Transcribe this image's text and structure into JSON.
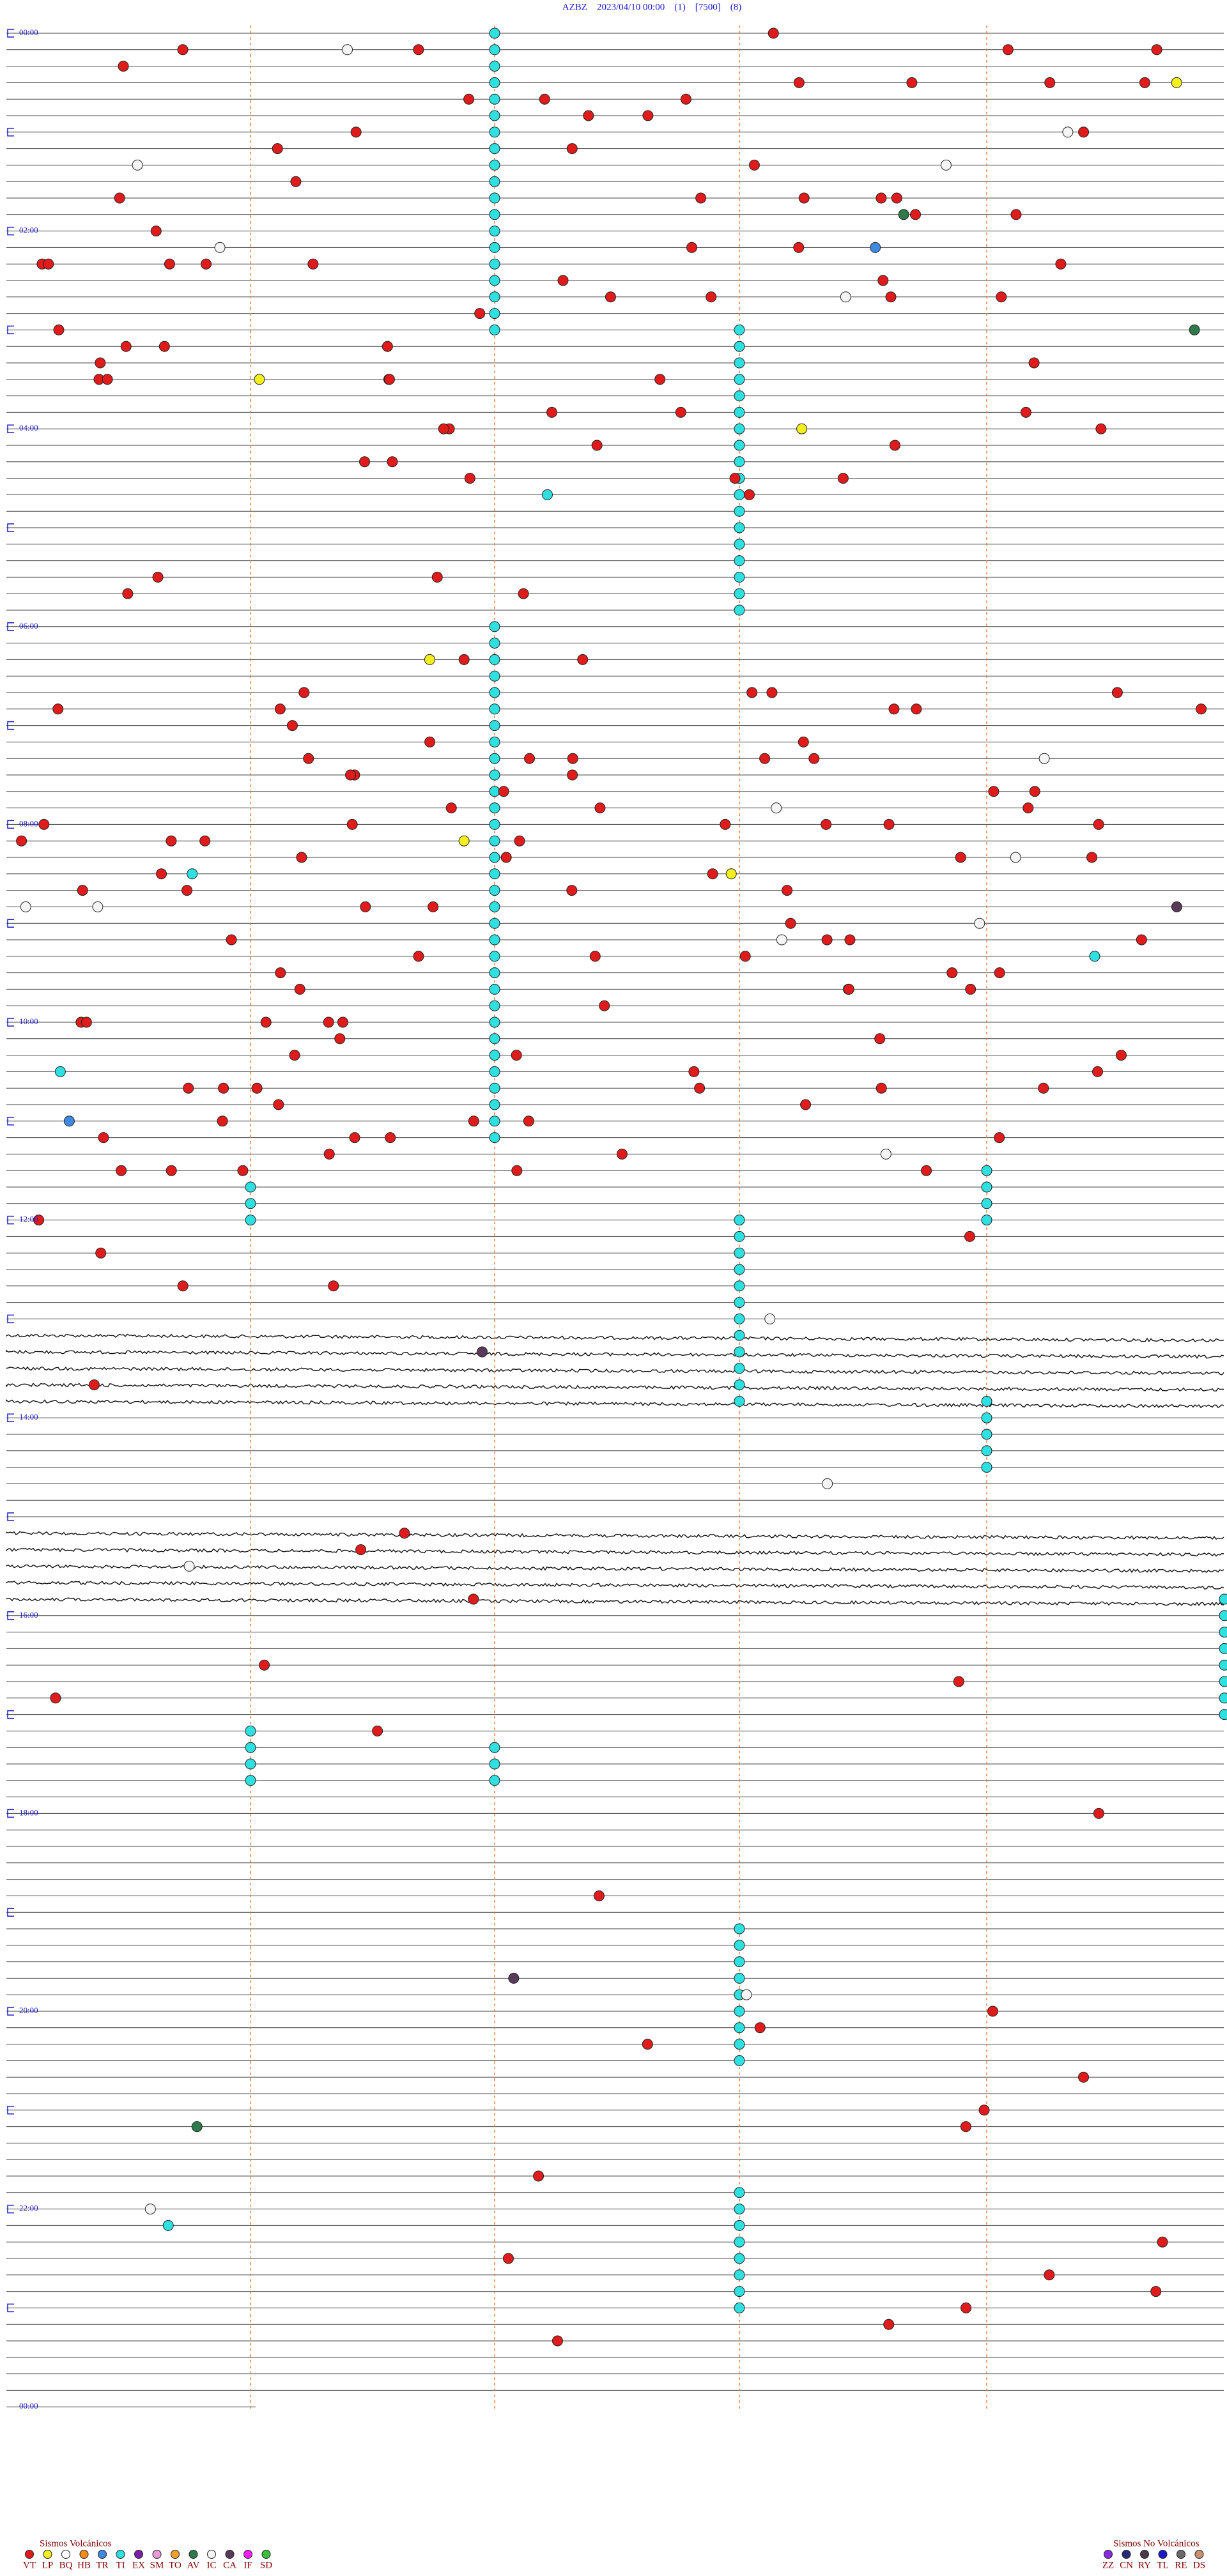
{
  "header": {
    "title": "AZBZ    2023/04/10 00:00    (1)    [7500]    (8)"
  },
  "time_labels": [
    "00:00",
    "02:00",
    "04:00",
    "06:00",
    "08:00",
    "10:00",
    "12:00",
    "14:00",
    "16:00",
    "18:00",
    "20:00",
    "22:00",
    "00:00"
  ],
  "legend": {
    "volcanic": {
      "title": "Sismos Volcánicos",
      "items": [
        {
          "label": "VT",
          "color": "#e01b1b"
        },
        {
          "label": "LP",
          "color": "#f2ef1c"
        },
        {
          "label": "BQ",
          "color": "#ffffff"
        },
        {
          "label": "HB",
          "color": "#f28c1c"
        },
        {
          "label": "TR",
          "color": "#3f8ae0"
        },
        {
          "label": "TI",
          "color": "#2ee0e0"
        },
        {
          "label": "EX",
          "color": "#7a1fa8"
        },
        {
          "label": "SM",
          "color": "#e89ad6"
        },
        {
          "label": "TO",
          "color": "#f0a030"
        },
        {
          "label": "AV",
          "color": "#2e7a4a"
        },
        {
          "label": "IC",
          "color": "#f4f4f4"
        },
        {
          "label": "CA",
          "color": "#5a3a5a"
        },
        {
          "label": "IF",
          "color": "#ff1cff"
        },
        {
          "label": "SD",
          "color": "#3cbf3c"
        }
      ]
    },
    "non_volcanic": {
      "title": "Sismos No Volcánicos",
      "items": [
        {
          "label": "ZZ",
          "color": "#8a2be2"
        },
        {
          "label": "CN",
          "color": "#2a2a7a"
        },
        {
          "label": "RY",
          "color": "#4a3a4a"
        },
        {
          "label": "TL",
          "color": "#1a1acc"
        },
        {
          "label": "RE",
          "color": "#6a6a6a"
        },
        {
          "label": "DS",
          "color": "#c89070"
        }
      ]
    }
  }
}
